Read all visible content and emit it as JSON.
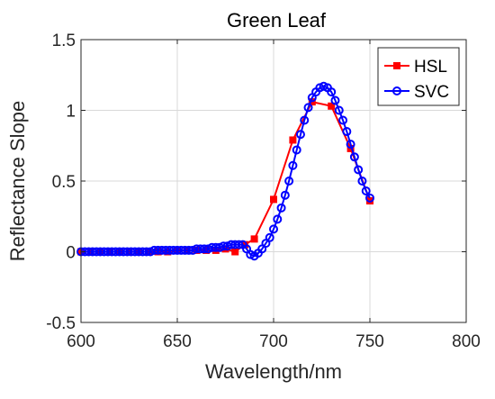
{
  "chart_data": {
    "type": "line",
    "title": "Green Leaf",
    "xlabel": "Wavelength/nm",
    "ylabel": "Reflectance Slope",
    "xlim": [
      600,
      800
    ],
    "ylim": [
      -0.5,
      1.5
    ],
    "xticks": [
      "600",
      "650",
      "700",
      "750",
      "800"
    ],
    "yticks": [
      "-0.5",
      "0",
      "0.5",
      "1",
      "1.5"
    ],
    "grid": true,
    "legend_position": "top-right",
    "series": [
      {
        "name": "HSL",
        "color": "#ff0000",
        "marker": "square",
        "x": [
          600,
          605,
          610,
          615,
          620,
          625,
          630,
          635,
          640,
          645,
          650,
          655,
          660,
          665,
          670,
          675,
          680,
          685,
          690,
          700,
          710,
          720,
          730,
          740,
          750
        ],
        "y": [
          0.0,
          0.0,
          0.0,
          0.0,
          0.0,
          0.0,
          0.0,
          0.0,
          0.0,
          0.0,
          0.01,
          0.01,
          0.01,
          0.01,
          0.01,
          0.02,
          0.0,
          0.05,
          0.09,
          0.37,
          0.79,
          1.06,
          1.03,
          0.73,
          0.36
        ]
      },
      {
        "name": "SVC",
        "color": "#0000ff",
        "marker": "circle",
        "x": [
          600,
          602,
          604,
          606,
          608,
          610,
          612,
          614,
          616,
          618,
          620,
          622,
          624,
          626,
          628,
          630,
          632,
          634,
          636,
          638,
          640,
          642,
          644,
          646,
          648,
          650,
          652,
          654,
          656,
          658,
          660,
          662,
          664,
          666,
          668,
          670,
          672,
          674,
          676,
          678,
          680,
          682,
          684,
          686,
          688,
          690,
          692,
          694,
          696,
          698,
          700,
          702,
          704,
          706,
          708,
          710,
          712,
          714,
          716,
          718,
          720,
          722,
          724,
          726,
          728,
          730,
          732,
          734,
          736,
          738,
          740,
          742,
          744,
          746,
          748,
          750
        ],
        "y": [
          0.0,
          0.0,
          0.0,
          0.0,
          0.0,
          0.0,
          0.0,
          0.0,
          0.0,
          0.0,
          0.0,
          0.0,
          0.0,
          0.0,
          0.0,
          0.0,
          0.0,
          0.0,
          0.0,
          0.01,
          0.01,
          0.01,
          0.01,
          0.01,
          0.01,
          0.01,
          0.01,
          0.01,
          0.01,
          0.01,
          0.02,
          0.02,
          0.02,
          0.02,
          0.03,
          0.03,
          0.03,
          0.04,
          0.04,
          0.05,
          0.05,
          0.05,
          0.05,
          0.02,
          -0.02,
          -0.03,
          -0.01,
          0.02,
          0.06,
          0.1,
          0.16,
          0.23,
          0.31,
          0.4,
          0.5,
          0.61,
          0.72,
          0.83,
          0.93,
          1.02,
          1.09,
          1.13,
          1.16,
          1.17,
          1.16,
          1.13,
          1.07,
          1.0,
          0.93,
          0.85,
          0.76,
          0.67,
          0.58,
          0.5,
          0.43,
          0.38
        ]
      }
    ]
  }
}
